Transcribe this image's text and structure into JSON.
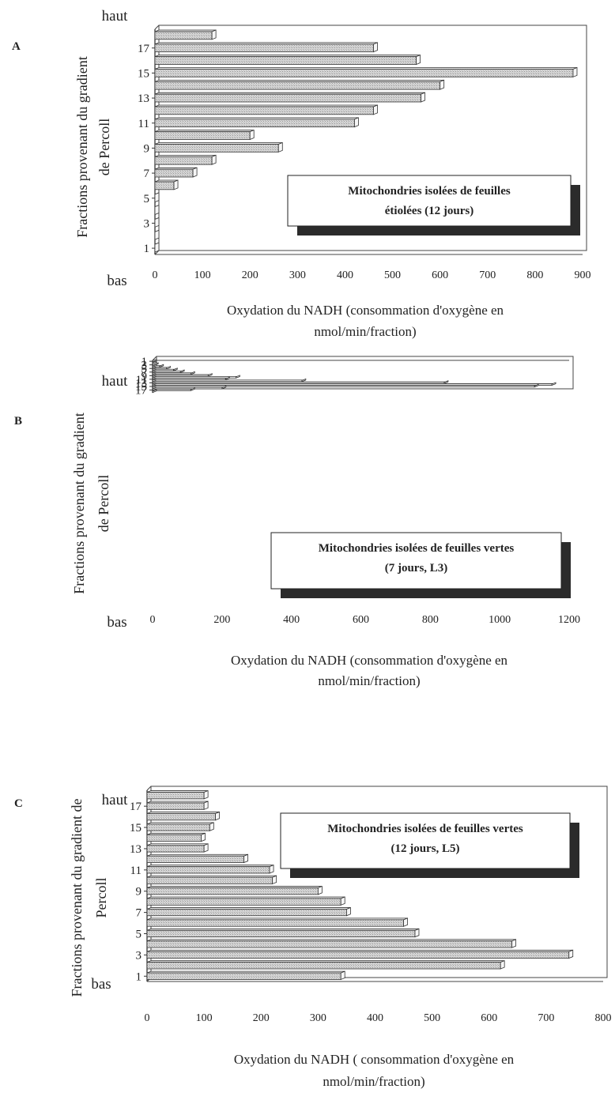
{
  "chart_data": [
    {
      "type": "bar",
      "orientation": "horizontal",
      "panel_label": "A",
      "ylabel": "Fractions provenant du gradient de Percoll",
      "ylabel_lines": [
        "Fractions provenant du gradient",
        "de Percoll"
      ],
      "top_label": "haut",
      "bottom_label": "bas",
      "xlabel_lines": [
        "Oxydation du NADH  (consommation d'oxygène en",
        "nmol/min/fraction)"
      ],
      "xlim": [
        0,
        900
      ],
      "xticks": [
        0,
        100,
        200,
        300,
        400,
        500,
        600,
        700,
        800,
        900
      ],
      "ytick_labels": [
        "1",
        "3",
        "5",
        "7",
        "9",
        "11",
        "13",
        "15",
        "17"
      ],
      "categories": [
        "1",
        "2",
        "3",
        "4",
        "5",
        "6",
        "7",
        "8",
        "9",
        "10",
        "11",
        "12",
        "13",
        "14",
        "15",
        "16",
        "17",
        "18"
      ],
      "values": [
        0,
        0,
        0,
        0,
        0,
        40,
        80,
        120,
        260,
        200,
        420,
        460,
        560,
        600,
        880,
        550,
        460,
        120
      ],
      "annotation_lines": [
        "Mitochondries isolées de feuilles",
        "étiolées (12 jours)"
      ],
      "grid": false
    },
    {
      "type": "bar",
      "orientation": "horizontal",
      "panel_label": "B",
      "ylabel": "Fractions provenant du gradient de Percoll",
      "ylabel_lines": [
        "Fractions provenant du gradient",
        "de Percoll"
      ],
      "top_label": "haut",
      "bottom_label": "bas",
      "xlabel_lines": [
        "Oxydation du NADH (consommation d'oxygène en",
        "nmol/min/fraction)"
      ],
      "xlim": [
        0,
        1200
      ],
      "xticks": [
        0,
        200,
        400,
        600,
        800,
        1000,
        1200
      ],
      "ytick_labels": [
        "1",
        "3",
        "5",
        "7",
        "9",
        "11",
        "13",
        "15",
        "17"
      ],
      "categories": [
        "1",
        "2",
        "3",
        "4",
        "5",
        "6",
        "7",
        "8",
        "9",
        "10",
        "11",
        "12",
        "13",
        "14",
        "15",
        "16",
        "17",
        "18"
      ],
      "values": [
        0,
        0,
        5,
        20,
        40,
        60,
        80,
        110,
        160,
        240,
        210,
        430,
        840,
        1150,
        1100,
        200,
        110,
        0
      ],
      "annotation_lines": [
        "Mitochondries isolées de feuilles vertes",
        "(7 jours, L3)"
      ],
      "grid": false
    },
    {
      "type": "bar",
      "orientation": "horizontal",
      "panel_label": "C",
      "ylabel": "Fractions provenant du gradient de Percoll",
      "ylabel_lines": [
        "Fractions provenant du gradient de",
        "Percoll"
      ],
      "top_label": "haut",
      "bottom_label": "bas",
      "xlabel_lines": [
        "Oxydation du NADH ( consommation d'oxygène en",
        "nmol/min/fraction)"
      ],
      "xlim": [
        0,
        800
      ],
      "xticks": [
        0,
        100,
        200,
        300,
        400,
        500,
        600,
        700,
        800
      ],
      "ytick_labels": [
        "1",
        "3",
        "5",
        "7",
        "9",
        "11",
        "13",
        "15",
        "17"
      ],
      "categories": [
        "1",
        "2",
        "3",
        "4",
        "5",
        "6",
        "7",
        "8",
        "9",
        "10",
        "11",
        "12",
        "13",
        "14",
        "15",
        "16",
        "17",
        "18"
      ],
      "values": [
        340,
        620,
        740,
        640,
        470,
        450,
        350,
        340,
        300,
        220,
        215,
        170,
        100,
        95,
        110,
        120,
        100,
        100
      ],
      "annotation_lines": [
        "Mitochondries isolées de feuilles vertes",
        "(12 jours, L5)"
      ],
      "grid": false
    }
  ]
}
